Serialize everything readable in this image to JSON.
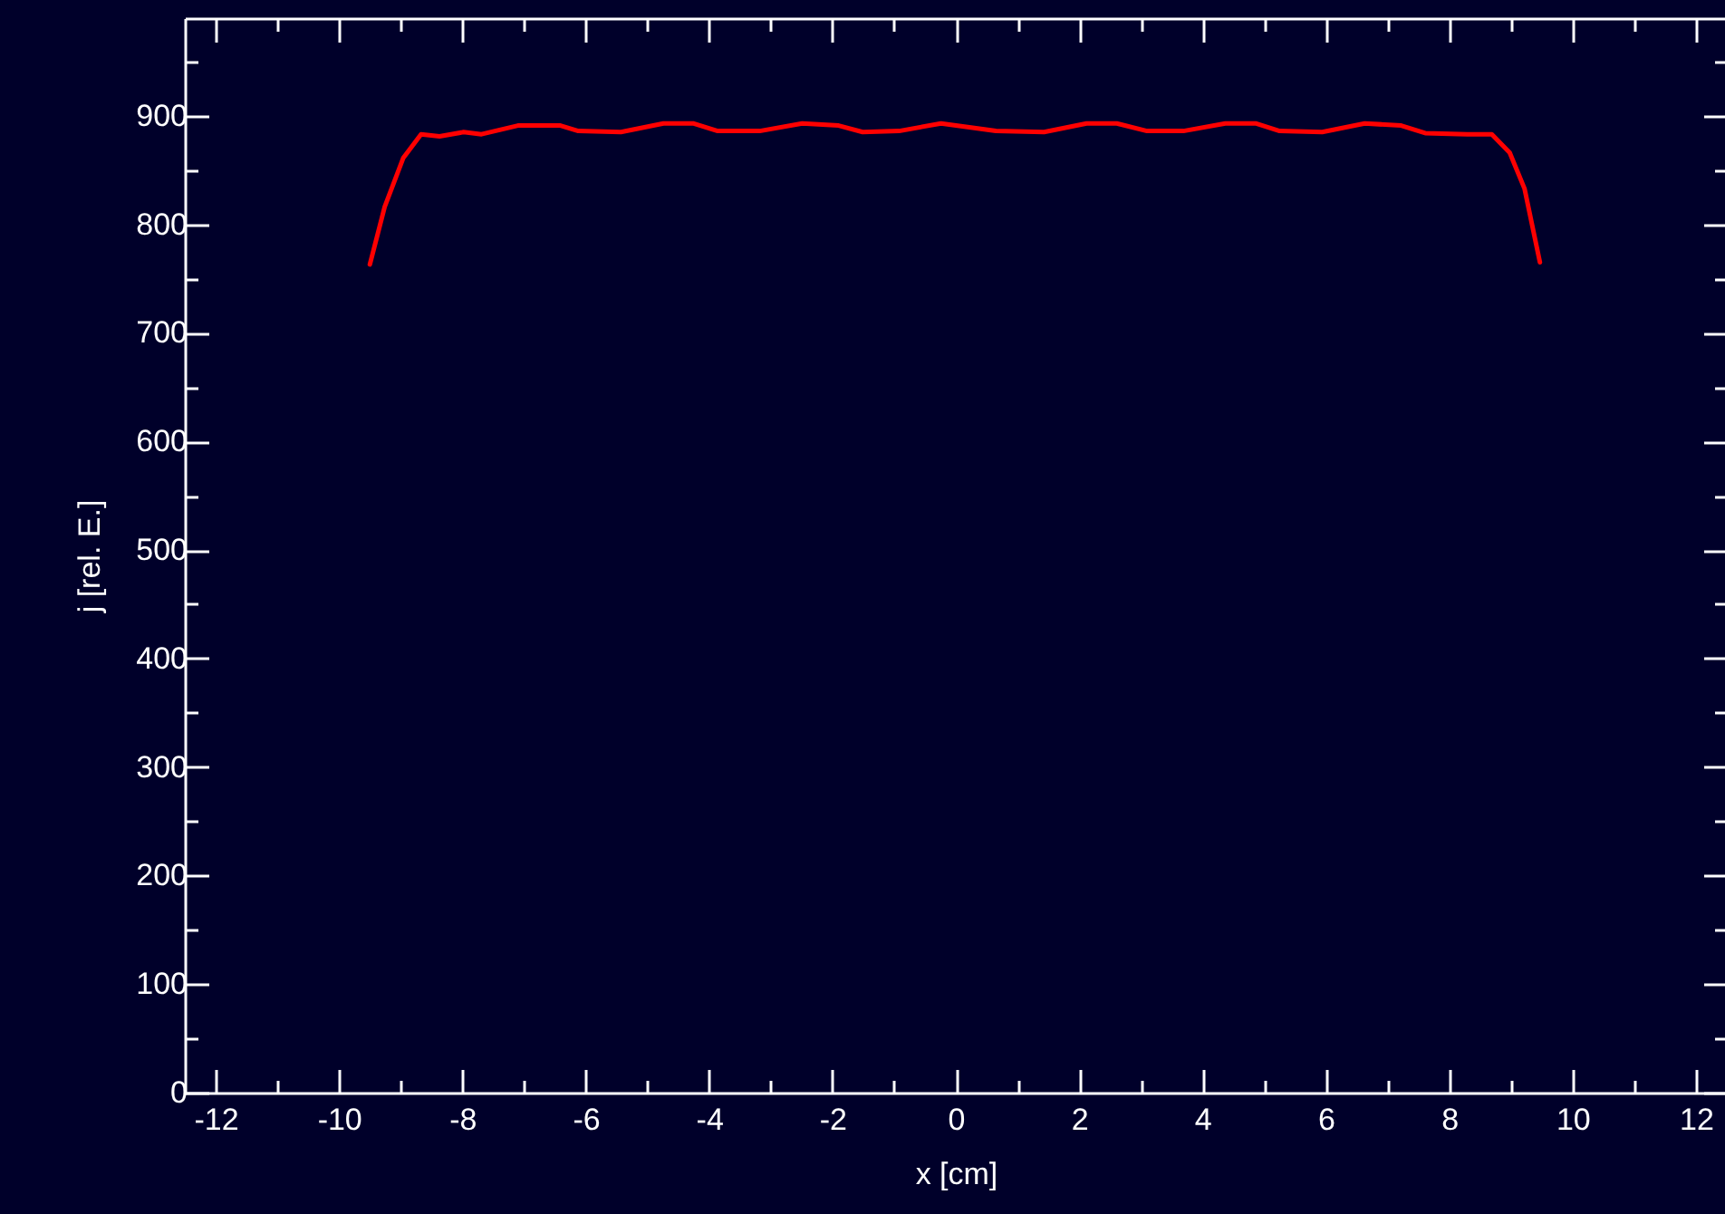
{
  "chart_data": {
    "type": "line",
    "xlabel": "x [cm]",
    "ylabel": "j [rel. E.]",
    "xlim": [
      -12.5,
      12.5
    ],
    "xticks": [
      -12,
      {
        "value": -11,
        "label": null
      },
      -10,
      {
        "value": -9,
        "label": null
      },
      -8,
      {
        "value": -7,
        "label": null
      },
      -6,
      {
        "value": -5,
        "label": null
      },
      -4,
      {
        "value": -3,
        "label": null
      },
      -2,
      {
        "value": -1,
        "label": null
      },
      0,
      {
        "value": 1,
        "label": null
      },
      2,
      {
        "value": 3,
        "label": null
      },
      4,
      {
        "value": 5,
        "label": null
      },
      6,
      {
        "value": 7,
        "label": null
      },
      8,
      {
        "value": 9,
        "label": null
      },
      10,
      {
        "value": 11,
        "label": null
      },
      12
    ],
    "ylim": [
      0,
      990
    ],
    "yticks": [
      0,
      {
        "value": 50,
        "label": null
      },
      100,
      {
        "value": 150,
        "label": null
      },
      200,
      {
        "value": 250,
        "label": null
      },
      300,
      {
        "value": 350,
        "label": null
      },
      400,
      {
        "value": 450,
        "label": null
      },
      500,
      {
        "value": 550,
        "label": null
      },
      600,
      {
        "value": 650,
        "label": null
      },
      700,
      {
        "value": 750,
        "label": null
      },
      800,
      {
        "value": 850,
        "label": null
      },
      900,
      {
        "value": 950,
        "label": null
      }
    ],
    "grid": false,
    "marker": "none",
    "line_style": "solid",
    "series": [
      {
        "color": "#ff0000",
        "x": [
          -9.5,
          -9.26,
          -8.96,
          -8.67,
          -8.37,
          -7.98,
          -7.69,
          -7.1,
          -6.41,
          -6.12,
          -5.43,
          -4.74,
          -4.26,
          -3.86,
          -3.18,
          -2.49,
          -1.9,
          -1.51,
          -0.92,
          -0.24,
          0.65,
          1.43,
          2.12,
          2.61,
          3.1,
          3.69,
          4.37,
          4.86,
          5.25,
          5.94,
          6.63,
          7.22,
          7.61,
          8.29,
          8.69,
          8.98,
          9.22,
          9.47
        ],
        "values": [
          763,
          816,
          861,
          883,
          881,
          885,
          883,
          891,
          891,
          886,
          885,
          893,
          893,
          886,
          886,
          893,
          891,
          885,
          886,
          893,
          886,
          885,
          893,
          893,
          886,
          886,
          893,
          893,
          886,
          885,
          893,
          891,
          884,
          883,
          883,
          866,
          833,
          765
        ]
      }
    ]
  }
}
